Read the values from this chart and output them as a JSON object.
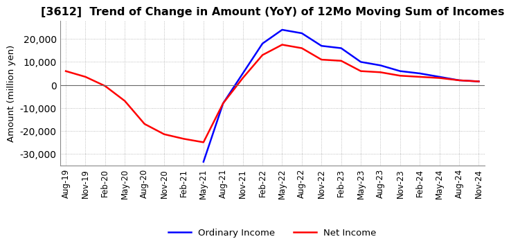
{
  "title": "[3612]  Trend of Change in Amount (YoY) of 12Mo Moving Sum of Incomes",
  "ylabel": "Amount (million yen)",
  "title_fontsize": 11.5,
  "label_fontsize": 9.5,
  "tick_fontsize": 8.5,
  "background_color": "#ffffff",
  "grid_color": "#aaaaaa",
  "ordinary_income_color": "#0000ff",
  "net_income_color": "#ff0000",
  "dates": [
    "Aug-19",
    "Nov-19",
    "Feb-20",
    "May-20",
    "Aug-20",
    "Nov-20",
    "Feb-21",
    "May-21",
    "Aug-21",
    "Nov-21",
    "Feb-22",
    "May-22",
    "Aug-22",
    "Nov-22",
    "Feb-23",
    "May-23",
    "Aug-23",
    "Nov-23",
    "Feb-24",
    "May-24",
    "Aug-24",
    "Nov-24"
  ],
  "ordinary_income": [
    null,
    null,
    null,
    null,
    null,
    null,
    null,
    -33500,
    -8000,
    5000,
    18000,
    24000,
    22500,
    17000,
    16000,
    10000,
    8500,
    6000,
    5000,
    3500,
    2000,
    1500
  ],
  "net_income": [
    6000,
    3500,
    -500,
    -7000,
    -17000,
    -21500,
    -23500,
    -25000,
    -8000,
    3000,
    13000,
    17500,
    16000,
    11000,
    10500,
    6000,
    5500,
    4000,
    3500,
    3000,
    2000,
    1500
  ],
  "ylim": [
    -35000,
    28000
  ],
  "yticks": [
    -30000,
    -20000,
    -10000,
    0,
    10000,
    20000
  ],
  "legend_labels": [
    "Ordinary Income",
    "Net Income"
  ]
}
